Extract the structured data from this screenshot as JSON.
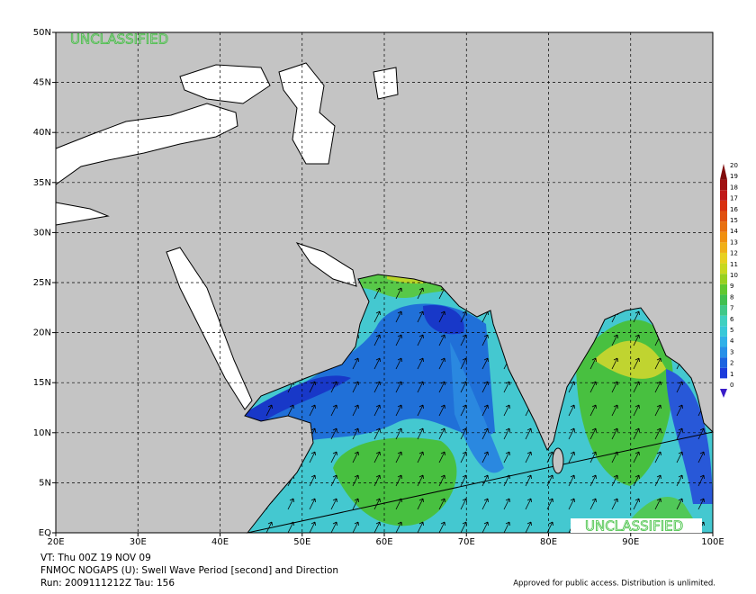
{
  "map": {
    "classification_top": "UNCLASSIFIED",
    "classification_bottom": "UNCLASSIFIED",
    "lat_labels": [
      "50N",
      "45N",
      "40N",
      "35N",
      "30N",
      "25N",
      "20N",
      "15N",
      "10N",
      "5N",
      "EQ"
    ],
    "lon_labels": [
      "20E",
      "30E",
      "40E",
      "50E",
      "60E",
      "70E",
      "80E",
      "90E",
      "100E"
    ]
  },
  "colorbar": {
    "labels": [
      "0",
      "1",
      "2",
      "3",
      "4",
      "5",
      "6",
      "7",
      "8",
      "9",
      "10",
      "11",
      "12",
      "13",
      "14",
      "15",
      "16",
      "17",
      "18",
      "19",
      "20"
    ],
    "colors": [
      "#3a1cc8",
      "#1c3cdc",
      "#1c64e0",
      "#2890e8",
      "#30b0e8",
      "#38c8d8",
      "#40d0c0",
      "#40c888",
      "#40c050",
      "#60c830",
      "#98d020",
      "#c8d820",
      "#e8d020",
      "#f0b018",
      "#f09010",
      "#e87010",
      "#e05010",
      "#d83010",
      "#c01818",
      "#a01010",
      "#800c0c"
    ]
  },
  "footer": {
    "valid_time": "VT: Thu 00Z 19 NOV 09",
    "product": "FNMOC NOGAPS (U): Swell Wave Period [second] and Direction",
    "run": "Run: 2009111212Z  Tau: 156",
    "notice": "Approved for public access. Distribution is unlimited."
  }
}
